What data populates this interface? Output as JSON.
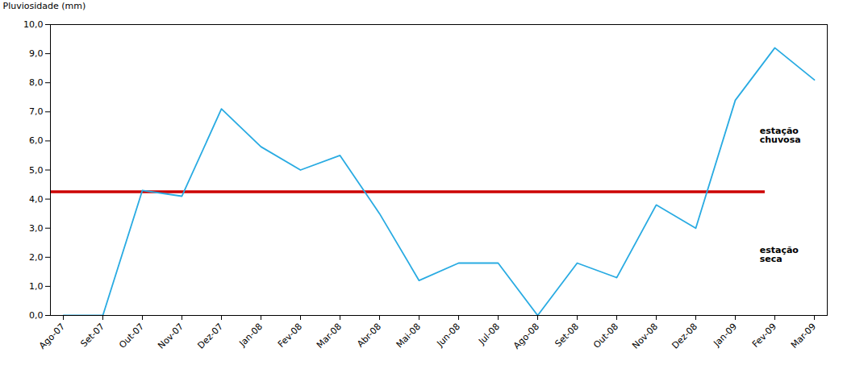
{
  "chart_data": {
    "type": "line",
    "categories": [
      "Ago-07",
      "Set-07",
      "Out-07",
      "Nov-07",
      "Dez-07",
      "Jan-08",
      "Fev-08",
      "Mar-08",
      "Abr-08",
      "Mai-08",
      "Jun-08",
      "Jul-08",
      "Ago-08",
      "Set-08",
      "Out-08",
      "Nov-08",
      "Dez-08",
      "Jan-09",
      "Fev-09",
      "Mar-09"
    ],
    "values": [
      0.0,
      0.0,
      4.3,
      4.1,
      7.1,
      5.8,
      5.0,
      5.5,
      3.5,
      1.2,
      1.8,
      1.8,
      0.0,
      1.8,
      1.3,
      3.8,
      3.0,
      7.4,
      9.2,
      8.1
    ],
    "color": "#29ABE2",
    "ylabel": "Pluviosidade (mm)",
    "ylim": [
      0,
      10
    ],
    "yticks": [
      {
        "value": 0,
        "label": "0,0"
      },
      {
        "value": 1,
        "label": "1,0"
      },
      {
        "value": 2,
        "label": "2,0"
      },
      {
        "value": 3,
        "label": "3,0"
      },
      {
        "value": 4,
        "label": "4,0"
      },
      {
        "value": 5,
        "label": "5,0"
      },
      {
        "value": 6,
        "label": "6,0"
      },
      {
        "value": 7,
        "label": "7,0"
      },
      {
        "value": 8,
        "label": "8,0"
      },
      {
        "value": 9,
        "label": "9,0"
      },
      {
        "value": 10,
        "label": "10,0"
      }
    ],
    "grid": false,
    "reference_line": {
      "y": 4.25,
      "color": "#CC0000"
    },
    "annotations": [
      {
        "text": "estação\nchuvosa",
        "y": 6.2
      },
      {
        "text": "estação\nseca",
        "y": 2.1
      }
    ]
  }
}
